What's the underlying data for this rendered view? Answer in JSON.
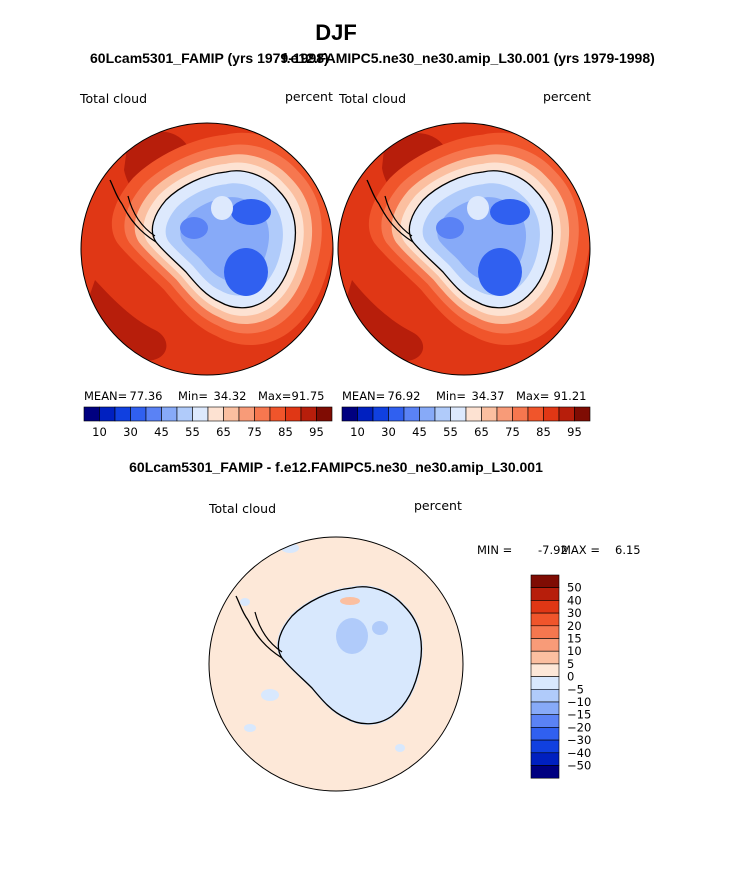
{
  "season": "DJF",
  "colors": {
    "abs": [
      "#000080",
      "#0020c0",
      "#1040e0",
      "#3060f0",
      "#5a82f5",
      "#87aaf8",
      "#b0cbfa",
      "#dde9fd",
      "#fde2d2",
      "#fbbfa0",
      "#f89b78",
      "#f6774f",
      "#f0552b",
      "#e03715",
      "#b71e0b",
      "#7f0c03"
    ],
    "diff": [
      "#000080",
      "#0020c0",
      "#1040e0",
      "#3060f0",
      "#5a82f5",
      "#87aaf8",
      "#b0cbfa",
      "#d8e8fd",
      "#fde8d8",
      "#fbbfa0",
      "#f89b78",
      "#f6774f",
      "#f0552b",
      "#e03715",
      "#b71e0b",
      "#7f0c03"
    ],
    "coast": "#000000"
  },
  "chart_data": [
    {
      "type": "contour-map",
      "title": "60Lcam5301_FAMIP (yrs 1979-1998)",
      "variable_label": "Total cloud",
      "units_label": "percent",
      "stats": {
        "mean_label": "MEAN=",
        "mean": "77.36",
        "min_label": "Min=",
        "min": "34.32",
        "max_label": "Max=",
        "max": "91.75"
      },
      "colorbar_labels": [
        "10",
        "30",
        "45",
        "55",
        "65",
        "75",
        "85",
        "95"
      ],
      "levels": [
        10,
        20,
        30,
        40,
        45,
        50,
        55,
        60,
        65,
        70,
        75,
        80,
        85,
        90,
        95
      ]
    },
    {
      "type": "contour-map",
      "title": "f.e12.FAMIPC5.ne30_ne30.amip_L30.001 (yrs 1979-1998)",
      "variable_label": "Total cloud",
      "units_label": "percent",
      "stats": {
        "mean_label": "MEAN=",
        "mean": "76.92",
        "min_label": "Min=",
        "min": "34.37",
        "max_label": "Max=",
        "max": "91.21"
      },
      "colorbar_labels": [
        "10",
        "30",
        "45",
        "55",
        "65",
        "75",
        "85",
        "95"
      ],
      "levels": [
        10,
        20,
        30,
        40,
        45,
        50,
        55,
        60,
        65,
        70,
        75,
        80,
        85,
        90,
        95
      ]
    },
    {
      "type": "contour-map-difference",
      "title": "60Lcam5301_FAMIP - f.e12.FAMIPC5.ne30_ne30.amip_L30.001",
      "variable_label": "Total cloud",
      "units_label": "percent",
      "stats": {
        "min_label": "MIN =",
        "min": "-7.92",
        "max_label": "MAX =",
        "max": "6.15"
      },
      "colorbar_labels": [
        "50",
        "40",
        "30",
        "20",
        "15",
        "10",
        "5",
        "0",
        "−5",
        "−10",
        "−15",
        "−20",
        "−30",
        "−40",
        "−50"
      ]
    }
  ]
}
